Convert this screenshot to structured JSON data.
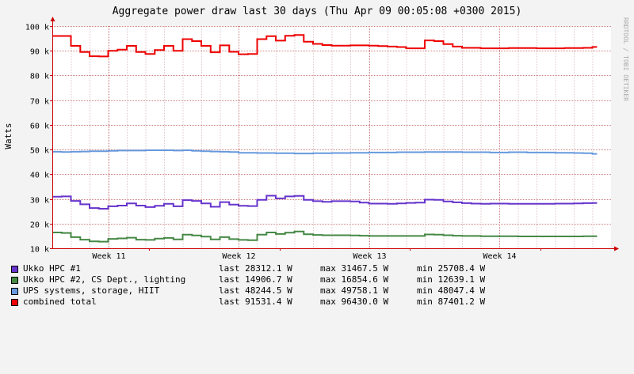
{
  "chart_data": {
    "type": "line",
    "title": "Aggregate power draw last 30 days (Thu Apr 09 00:05:08 +0300 2015)",
    "ylabel": "Watts",
    "side_text": "RRDTOOL / TOBI OETIKER",
    "ylim": [
      10000,
      100000
    ],
    "yticks": [
      {
        "v": 10000,
        "label": "10 k"
      },
      {
        "v": 20000,
        "label": "20 k"
      },
      {
        "v": 30000,
        "label": "30 k"
      },
      {
        "v": 40000,
        "label": "40 k"
      },
      {
        "v": 50000,
        "label": "50 k"
      },
      {
        "v": 60000,
        "label": "60 k"
      },
      {
        "v": 70000,
        "label": "70 k"
      },
      {
        "v": 80000,
        "label": "80 k"
      },
      {
        "v": 90000,
        "label": "90 k"
      },
      {
        "v": 100000,
        "label": "100 k"
      }
    ],
    "xlim_days": [
      0,
      30
    ],
    "xticks": [
      {
        "day": 3,
        "label": "Week 11"
      },
      {
        "day": 10,
        "label": "Week 12"
      },
      {
        "day": 17,
        "label": "Week 13"
      },
      {
        "day": 24,
        "label": "Week 14"
      }
    ],
    "x_day": [
      0,
      0.5,
      1,
      1.5,
      2,
      2.5,
      3,
      3.5,
      4,
      4.5,
      5,
      5.5,
      6,
      6.5,
      7,
      7.5,
      8,
      8.5,
      9,
      9.5,
      10,
      10.5,
      11,
      11.5,
      12,
      12.5,
      13,
      13.5,
      14,
      14.5,
      15,
      15.5,
      16,
      16.5,
      17,
      17.5,
      18,
      18.5,
      19,
      19.5,
      20,
      20.5,
      21,
      21.5,
      22,
      22.5,
      23,
      23.5,
      24,
      24.5,
      25,
      25.5,
      26,
      26.5,
      27,
      27.5,
      28,
      28.5,
      29
    ],
    "series": [
      {
        "name": "Ukko HPC #1",
        "color": "#6633cc",
        "values": [
          30900,
          31000,
          29200,
          27800,
          26300,
          26000,
          27000,
          27300,
          28200,
          27300,
          26700,
          27200,
          28000,
          27000,
          29500,
          29200,
          28200,
          26800,
          28700,
          27700,
          27200,
          27100,
          29600,
          31300,
          30200,
          31000,
          31200,
          29600,
          29100,
          28800,
          29100,
          29100,
          29000,
          28500,
          28100,
          28100,
          28000,
          28200,
          28400,
          28500,
          29700,
          29600,
          29000,
          28600,
          28300,
          28100,
          28000,
          28100,
          28100,
          28000,
          28000,
          28000,
          28000,
          28000,
          28100,
          28100,
          28200,
          28300,
          28312
        ]
      },
      {
        "name": "Ukko HPC #2, CS Dept., lighting",
        "color": "#448844",
        "values": [
          16400,
          16200,
          14500,
          13500,
          12800,
          12700,
          13800,
          14000,
          14300,
          13500,
          13400,
          13900,
          14200,
          13600,
          15500,
          15200,
          14700,
          13600,
          14500,
          13700,
          13400,
          13300,
          15500,
          16400,
          15800,
          16300,
          16800,
          15700,
          15400,
          15300,
          15300,
          15300,
          15200,
          15100,
          15000,
          15000,
          15000,
          15000,
          15000,
          15000,
          15600,
          15500,
          15300,
          15100,
          15000,
          15000,
          14900,
          14900,
          14900,
          14900,
          14800,
          14800,
          14800,
          14800,
          14800,
          14800,
          14800,
          14900,
          14907
        ]
      },
      {
        "name": "UPS systems, storage, HIIT",
        "color": "#6699dd",
        "values": [
          49100,
          49000,
          49100,
          49200,
          49300,
          49300,
          49500,
          49600,
          49600,
          49600,
          49700,
          49700,
          49700,
          49600,
          49700,
          49500,
          49300,
          49200,
          49100,
          49000,
          48700,
          48700,
          48600,
          48600,
          48500,
          48500,
          48400,
          48400,
          48500,
          48500,
          48600,
          48600,
          48700,
          48700,
          48800,
          48800,
          48800,
          48900,
          48900,
          48900,
          49000,
          49000,
          49000,
          49000,
          48900,
          48900,
          48900,
          48800,
          48800,
          48900,
          48900,
          48800,
          48800,
          48800,
          48700,
          48700,
          48600,
          48500,
          48245
        ]
      },
      {
        "name": "combined total",
        "color": "#ee0000",
        "values": [
          96000,
          96000,
          92000,
          89500,
          87800,
          87700,
          90000,
          90500,
          92000,
          89500,
          88700,
          90300,
          92000,
          90000,
          94700,
          93900,
          92000,
          89400,
          92200,
          89600,
          88600,
          88700,
          94700,
          95900,
          94100,
          96100,
          96400,
          93700,
          92800,
          92300,
          92100,
          92100,
          92200,
          92200,
          92100,
          91900,
          91700,
          91500,
          91000,
          91000,
          94200,
          93900,
          92700,
          91700,
          91200,
          91200,
          91000,
          91000,
          91000,
          91100,
          91100,
          91100,
          91000,
          91000,
          91000,
          91100,
          91100,
          91200,
          91531
        ]
      }
    ],
    "legend": [
      {
        "name": "Ukko HPC #1",
        "color": "#6633cc",
        "last": "last 28312.1 W",
        "max": "max 31467.5 W",
        "min": "min 25708.4 W"
      },
      {
        "name": "Ukko HPC #2, CS Dept., lighting",
        "color": "#448844",
        "last": "last 14906.7 W",
        "max": "max 16854.6 W",
        "min": "min 12639.1 W"
      },
      {
        "name": "UPS systems, storage, HIIT",
        "color": "#6699dd",
        "last": "last 48244.5 W",
        "max": "max 49758.1 W",
        "min": "min 48047.4 W"
      },
      {
        "name": "combined total",
        "color": "#ee0000",
        "last": "last 91531.4 W",
        "max": "max 96430.0 W",
        "min": "min 87401.2 W"
      }
    ]
  }
}
